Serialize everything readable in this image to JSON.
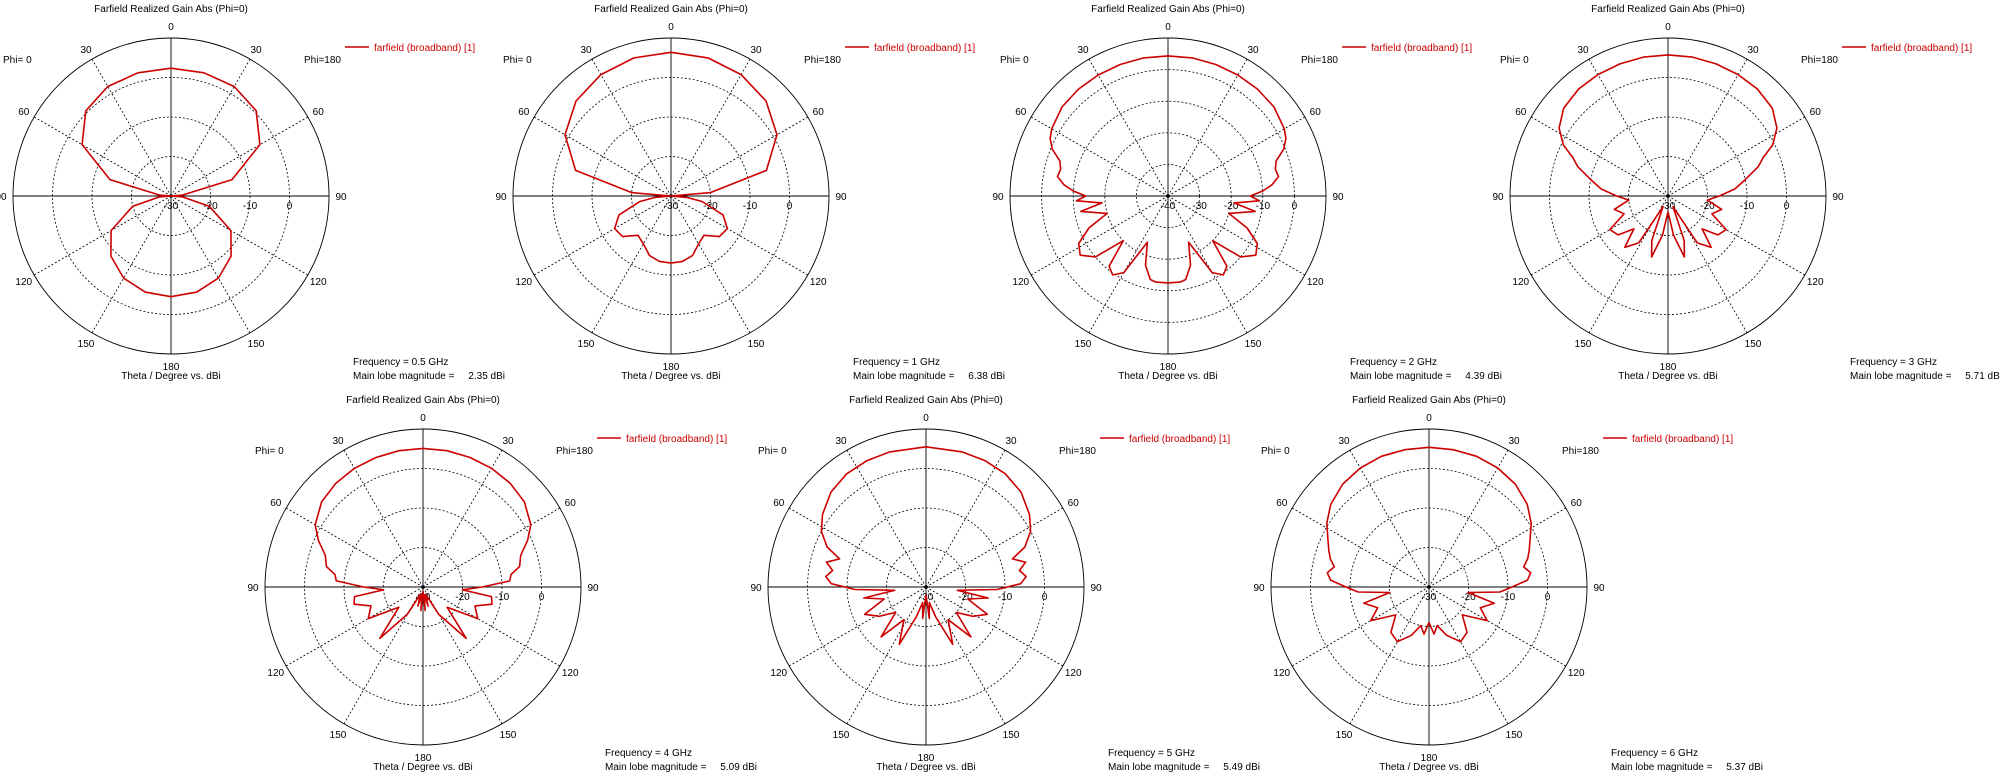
{
  "figure": {
    "plot_title": "Farfield Realized Gain Abs (Phi=0)",
    "legend_label": "farfield (broadband) [1]",
    "x_caption": "Theta / Degree vs. dBi",
    "phi_left": "Phi=  0",
    "phi_right": "Phi=180",
    "main_lobe_prefix": "Main lobe magnitude =",
    "colors": {
      "pattern": "#cc0000",
      "grid": "#000000",
      "text": "#000000"
    }
  },
  "chart_data": [
    {
      "type": "line",
      "coordinate_system": "polar",
      "title": "Farfield Realized Gain Abs (Phi=0)",
      "angle_ticks": [
        "0",
        "30",
        "60",
        "90",
        "120",
        "150",
        "180",
        "150",
        "120",
        "90",
        "60",
        "30"
      ],
      "radial_tick_labels": [
        "-30",
        "-20",
        "-10",
        "0"
      ],
      "frequency_label": "Frequency = 0.5 GHz",
      "main_lobe_value": "2.35 dBi",
      "rmin": -30,
      "rmax": 10,
      "series": [
        {
          "name": "farfield (broadband) [1]",
          "theta": [
            -180,
            -165,
            -150,
            -135,
            -120,
            -105,
            -95,
            -90,
            -85,
            -75,
            -60,
            -45,
            -30,
            -15,
            0,
            15,
            30,
            45,
            60,
            75,
            85,
            90,
            95,
            105,
            120,
            135,
            150,
            165,
            180
          ],
          "gain_dbi": [
            -4.5,
            -4.8,
            -6.0,
            -8.5,
            -12.5,
            -20,
            -27,
            -30,
            -27,
            -14,
            -4,
            0.5,
            2.0,
            2.3,
            2.35,
            2.3,
            2.0,
            0.5,
            -4,
            -14,
            -27,
            -30,
            -27,
            -20,
            -12.5,
            -8.5,
            -6.0,
            -4.8,
            -4.5
          ]
        }
      ]
    },
    {
      "type": "line",
      "coordinate_system": "polar",
      "title": "Farfield Realized Gain Abs (Phi=0)",
      "angle_ticks": [
        "0",
        "30",
        "60",
        "90",
        "120",
        "150",
        "180",
        "150",
        "120",
        "90",
        "60",
        "30"
      ],
      "radial_tick_labels": [
        "-30",
        "-20",
        "-10",
        "0"
      ],
      "frequency_label": "Frequency = 1 GHz",
      "main_lobe_value": "6.38 dBi",
      "rmin": -30,
      "rmax": 10,
      "series": [
        {
          "name": "farfield (broadband) [1]",
          "theta": [
            -180,
            -170,
            -160,
            -150,
            -140,
            -130,
            -120,
            -110,
            -100,
            -95,
            -90,
            -85,
            -75,
            -60,
            -45,
            -30,
            -15,
            0,
            15,
            30,
            45,
            60,
            75,
            85,
            90,
            95,
            100,
            110,
            120,
            130,
            140,
            150,
            160,
            170,
            180
          ],
          "gain_dbi": [
            -13,
            -13.2,
            -14,
            -16,
            -17,
            -14,
            -13.5,
            -16,
            -22,
            -26,
            -30,
            -20,
            -5,
            1,
            4,
            5.5,
            6.2,
            6.38,
            6.2,
            5.5,
            4,
            1,
            -5,
            -20,
            -30,
            -26,
            -22,
            -16,
            -13.5,
            -14,
            -17,
            -16,
            -14,
            -13.2,
            -13
          ]
        }
      ]
    },
    {
      "type": "line",
      "coordinate_system": "polar",
      "title": "Farfield Realized Gain Abs (Phi=0)",
      "angle_ticks": [
        "0",
        "30",
        "60",
        "90",
        "120",
        "150",
        "180",
        "150",
        "120",
        "90",
        "60",
        "30"
      ],
      "radial_tick_labels": [
        "-40",
        "-30",
        "-20",
        "-10",
        "0"
      ],
      "frequency_label": "Frequency = 2 GHz",
      "main_lobe_value": "4.39 dBi",
      "rmin": -40,
      "rmax": 10,
      "series": [
        {
          "name": "farfield (broadband) [1]",
          "theta": [
            -180,
            -172,
            -168,
            -162,
            -156,
            -150,
            -145,
            -140,
            -135,
            -130,
            -124,
            -118,
            -112,
            -106,
            -100,
            -96,
            -93,
            -90,
            -87,
            -84,
            -80,
            -76,
            -72,
            -68,
            -64,
            -60,
            -50,
            -40,
            -30,
            -20,
            -10,
            0,
            10,
            20,
            30,
            40,
            50,
            60,
            64,
            68,
            72,
            76,
            80,
            84,
            87,
            90,
            93,
            96,
            100,
            106,
            112,
            118,
            124,
            130,
            135,
            140,
            145,
            150,
            156,
            162,
            168,
            172,
            180
          ],
          "gain_dbi": [
            -12.5,
            -12.5,
            -13,
            -17,
            -24,
            -12,
            -9.5,
            -11,
            -20,
            -10,
            -6.5,
            -8,
            -13,
            -20,
            -12,
            -19,
            -11,
            -14,
            -10,
            -7,
            -4.5,
            -5,
            -4,
            -0.5,
            1.5,
            2.5,
            3.8,
            4.1,
            4.2,
            4.3,
            4.39,
            4.35,
            4.39,
            4.3,
            4.2,
            4.1,
            3.8,
            2.5,
            1.5,
            -0.5,
            -4,
            -5,
            -4.5,
            -7,
            -10,
            -14,
            -11,
            -19,
            -12,
            -20,
            -13,
            -8,
            -6.5,
            -10,
            -20,
            -11,
            -9.5,
            -12,
            -24,
            -17,
            -13,
            -12.5,
            -12.5
          ]
        }
      ]
    },
    {
      "type": "line",
      "coordinate_system": "polar",
      "title": "Farfield Realized Gain Abs (Phi=0)",
      "angle_ticks": [
        "0",
        "30",
        "60",
        "90",
        "120",
        "150",
        "180",
        "150",
        "120",
        "90",
        "60",
        "30"
      ],
      "radial_tick_labels": [
        "-30",
        "-20",
        "-10",
        "0"
      ],
      "frequency_label": "Frequency = 3 GHz",
      "main_lobe_value": "5.71 dBi",
      "rmin": -30,
      "rmax": 10,
      "series": [
        {
          "name": "farfield (broadband) [1]",
          "theta": [
            -180,
            -172,
            -165,
            -160,
            -155,
            -148,
            -140,
            -134,
            -128,
            -120,
            -112,
            -104,
            -96,
            -90,
            -84,
            -78,
            -72,
            -68,
            -64,
            -58,
            -50,
            -40,
            -30,
            -20,
            -10,
            0,
            10,
            20,
            30,
            40,
            50,
            58,
            64,
            68,
            72,
            78,
            84,
            90,
            96,
            104,
            112,
            120,
            128,
            134,
            140,
            148,
            155,
            160,
            165,
            172,
            180
          ],
          "gain_dbi": [
            -26,
            -20,
            -14,
            -18,
            -27,
            -16,
            -13,
            -18,
            -14,
            -13,
            -18,
            -16,
            -20,
            -17,
            -13,
            -10,
            -6,
            -4,
            -0.5,
            2.5,
            4.5,
            5.3,
            5.5,
            5.6,
            5.7,
            5.71,
            5.7,
            5.6,
            5.5,
            5.3,
            4.5,
            2.5,
            -0.5,
            -4,
            -6,
            -10,
            -13,
            -17,
            -20,
            -16,
            -18,
            -13,
            -14,
            -18,
            -13,
            -16,
            -27,
            -18,
            -14,
            -20,
            -26
          ]
        }
      ]
    },
    {
      "type": "line",
      "coordinate_system": "polar",
      "title": "Farfield Realized Gain Abs (Phi=0)",
      "angle_ticks": [
        "0",
        "30",
        "60",
        "90",
        "120",
        "150",
        "180",
        "150",
        "120",
        "90",
        "60",
        "30"
      ],
      "radial_tick_labels": [
        "-30",
        "-20",
        "-10",
        "0"
      ],
      "frequency_label": "Frequency = 4 GHz",
      "main_lobe_value": "5.09 dBi",
      "rmin": -30,
      "rmax": 10,
      "series": [
        {
          "name": "farfield (broadband) [1]",
          "theta": [
            -180,
            -175,
            -170,
            -165,
            -160,
            -150,
            -140,
            -130,
            -120,
            -110,
            -104,
            -98,
            -94,
            -90,
            -86,
            -82,
            -78,
            -72,
            -66,
            -60,
            -50,
            -40,
            -30,
            -20,
            -10,
            0,
            10,
            20,
            30,
            40,
            50,
            60,
            66,
            72,
            78,
            82,
            86,
            90,
            94,
            98,
            104,
            110,
            120,
            130,
            140,
            150,
            160,
            165,
            170,
            175,
            180
          ],
          "gain_dbi": [
            -29,
            -24,
            -28,
            -25,
            -28,
            -22,
            -13,
            -22,
            -14,
            -16,
            -12,
            -12.5,
            -20,
            -15,
            -8,
            -7.5,
            -5,
            -4,
            -1,
            1.5,
            3.5,
            4.3,
            4.7,
            4.9,
            5.05,
            5.09,
            5.05,
            4.9,
            4.7,
            4.3,
            3.5,
            1.5,
            -1,
            -4,
            -5,
            -7.5,
            -8,
            -15,
            -20,
            -12.5,
            -12,
            -16,
            -14,
            -22,
            -13,
            -22,
            -28,
            -25,
            -28,
            -24,
            -29
          ]
        }
      ]
    },
    {
      "type": "line",
      "coordinate_system": "polar",
      "title": "Farfield Realized Gain Abs (Phi=0)",
      "angle_ticks": [
        "0",
        "30",
        "60",
        "90",
        "120",
        "150",
        "180",
        "150",
        "120",
        "90",
        "60",
        "30"
      ],
      "radial_tick_labels": [
        "-30",
        "-20",
        "-10",
        "0"
      ],
      "frequency_label": "Frequency = 5 GHz",
      "main_lobe_value": "5.49 dBi",
      "rmin": -30,
      "rmax": 10,
      "series": [
        {
          "name": "farfield (broadband) [1]",
          "theta": [
            -180,
            -174,
            -168,
            -162,
            -155,
            -146,
            -138,
            -130,
            -122,
            -114,
            -106,
            -100,
            -96,
            -92,
            -88,
            -84,
            -80,
            -76,
            -72,
            -68,
            -62,
            -55,
            -45,
            -35,
            -25,
            -15,
            0,
            15,
            25,
            35,
            45,
            55,
            62,
            68,
            72,
            76,
            80,
            84,
            88,
            92,
            96,
            100,
            106,
            114,
            122,
            130,
            138,
            146,
            155,
            162,
            168,
            174,
            180
          ],
          "gain_dbi": [
            -28,
            -22,
            -26,
            -22,
            -14,
            -20,
            -13,
            -20,
            -16,
            -13,
            -19,
            -14,
            -22,
            -12,
            -6,
            -4.5,
            -6,
            -4,
            -7,
            -3,
            0,
            2,
            4,
            5,
            5.3,
            5.4,
            5.49,
            5.4,
            5.3,
            5,
            4,
            2,
            0,
            -3,
            -7,
            -4,
            -6,
            -4.5,
            -6,
            -12,
            -22,
            -14,
            -19,
            -13,
            -16,
            -20,
            -13,
            -20,
            -14,
            -22,
            -26,
            -22,
            -28
          ]
        }
      ]
    },
    {
      "type": "line",
      "coordinate_system": "polar",
      "title": "Farfield Realized Gain Abs (Phi=0)",
      "angle_ticks": [
        "0",
        "30",
        "60",
        "90",
        "120",
        "150",
        "180",
        "150",
        "120",
        "90",
        "60",
        "30"
      ],
      "radial_tick_labels": [
        "-30",
        "-20",
        "-10",
        "0"
      ],
      "frequency_label": "Frequency = 6 GHz",
      "main_lobe_value": "5.37 dBi",
      "rmin": -30,
      "rmax": 10,
      "series": [
        {
          "name": "farfield (broadband) [1]",
          "theta": [
            -180,
            -174,
            -168,
            -160,
            -150,
            -140,
            -130,
            -120,
            -112,
            -104,
            -98,
            -94,
            -90,
            -86,
            -82,
            -78,
            -74,
            -70,
            -64,
            -58,
            -50,
            -40,
            -30,
            -20,
            -10,
            0,
            10,
            20,
            30,
            40,
            50,
            58,
            64,
            70,
            74,
            78,
            82,
            86,
            90,
            94,
            98,
            104,
            112,
            120,
            130,
            140,
            150,
            160,
            168,
            174,
            180
          ],
          "gain_dbi": [
            -21,
            -18,
            -20,
            -17,
            -14,
            -15,
            -19,
            -13,
            -16,
            -13,
            -20,
            -12,
            -9,
            -5,
            -4,
            -5.5,
            -4,
            -3,
            -1.5,
            0.5,
            2.5,
            4,
            4.8,
            5.2,
            5.3,
            5.37,
            5.3,
            5.2,
            4.8,
            4,
            2.5,
            0.5,
            -1.5,
            -3,
            -4,
            -5.5,
            -4,
            -5,
            -9,
            -12,
            -20,
            -13,
            -16,
            -13,
            -19,
            -15,
            -14,
            -17,
            -20,
            -18,
            -21
          ]
        }
      ]
    }
  ]
}
